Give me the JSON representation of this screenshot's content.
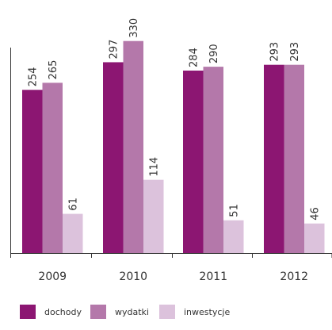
{
  "chart_data": {
    "type": "bar",
    "categories": [
      "2009",
      "2010",
      "2011",
      "2012"
    ],
    "series": [
      {
        "name": "dochody",
        "values": [
          254,
          297,
          284,
          293
        ],
        "color": "#8c1672"
      },
      {
        "name": "wydatki",
        "values": [
          265,
          330,
          290,
          293
        ],
        "color": "#b478aa"
      },
      {
        "name": "inwestycje",
        "values": [
          61,
          114,
          51,
          46
        ],
        "color": "#dcc2dc"
      }
    ],
    "ylim": [
      0,
      342
    ],
    "grid": false,
    "legend_position": "bottom"
  }
}
